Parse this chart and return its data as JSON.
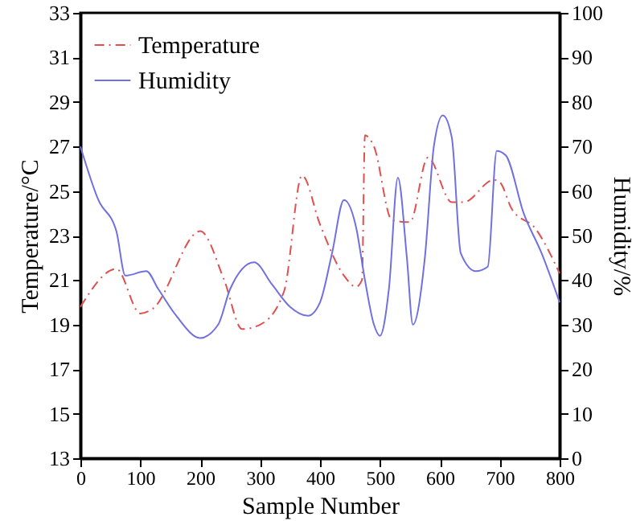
{
  "chart_data": {
    "type": "line",
    "xlabel": "Sample Number",
    "ylabel": "Temperature/°C",
    "y2label": "Humidity/%",
    "xlim": [
      0,
      800
    ],
    "xticks": [
      0,
      100,
      200,
      300,
      400,
      500,
      600,
      700,
      800
    ],
    "ylim": [
      13,
      33
    ],
    "yticks": [
      13,
      15,
      17,
      19,
      21,
      23,
      25,
      27,
      29,
      31,
      33
    ],
    "y2lim": [
      0,
      100
    ],
    "y2ticks": [
      0,
      10,
      20,
      30,
      40,
      50,
      60,
      70,
      80,
      90,
      100
    ],
    "grid": false,
    "legend": "top left",
    "marker": "none",
    "series": [
      {
        "name": "Temperature",
        "color": "#e05050",
        "line_style": "dashed",
        "x": [
          0,
          60,
          100,
          120,
          200,
          240,
          270,
          300,
          340,
          370,
          400,
          440,
          460,
          470,
          475,
          490,
          520,
          550,
          580,
          620,
          640,
          690,
          700,
          720,
          760,
          800
        ],
        "values": [
          19.8,
          21.5,
          19.5,
          19.7,
          23.2,
          21,
          18.8,
          19,
          20.5,
          25.7,
          23.5,
          21.2,
          20.7,
          21,
          27.5,
          27,
          23.7,
          23.6,
          26.5,
          24.5,
          24.5,
          25.5,
          25.4,
          24.2,
          23.3,
          21.3
        ]
      },
      {
        "name": "Humidity",
        "color": "#7070e0",
        "line_style": "solid",
        "axis": "y2",
        "x": [
          0,
          30,
          60,
          75,
          110,
          130,
          160,
          200,
          230,
          250,
          290,
          320,
          350,
          380,
          400,
          420,
          440,
          460,
          475,
          490,
          500,
          515,
          530,
          545,
          555,
          575,
          590,
          605,
          620,
          635,
          660,
          680,
          695,
          710,
          740,
          770,
          800
        ],
        "values": [
          70,
          58,
          51,
          41,
          42,
          38,
          32,
          27,
          30,
          38,
          44,
          39,
          34,
          32,
          35,
          46,
          58,
          52,
          40,
          30,
          27.5,
          38,
          63,
          45,
          30,
          45,
          70,
          77,
          72,
          46,
          42,
          43,
          69,
          68,
          55,
          46,
          35
        ]
      }
    ]
  }
}
